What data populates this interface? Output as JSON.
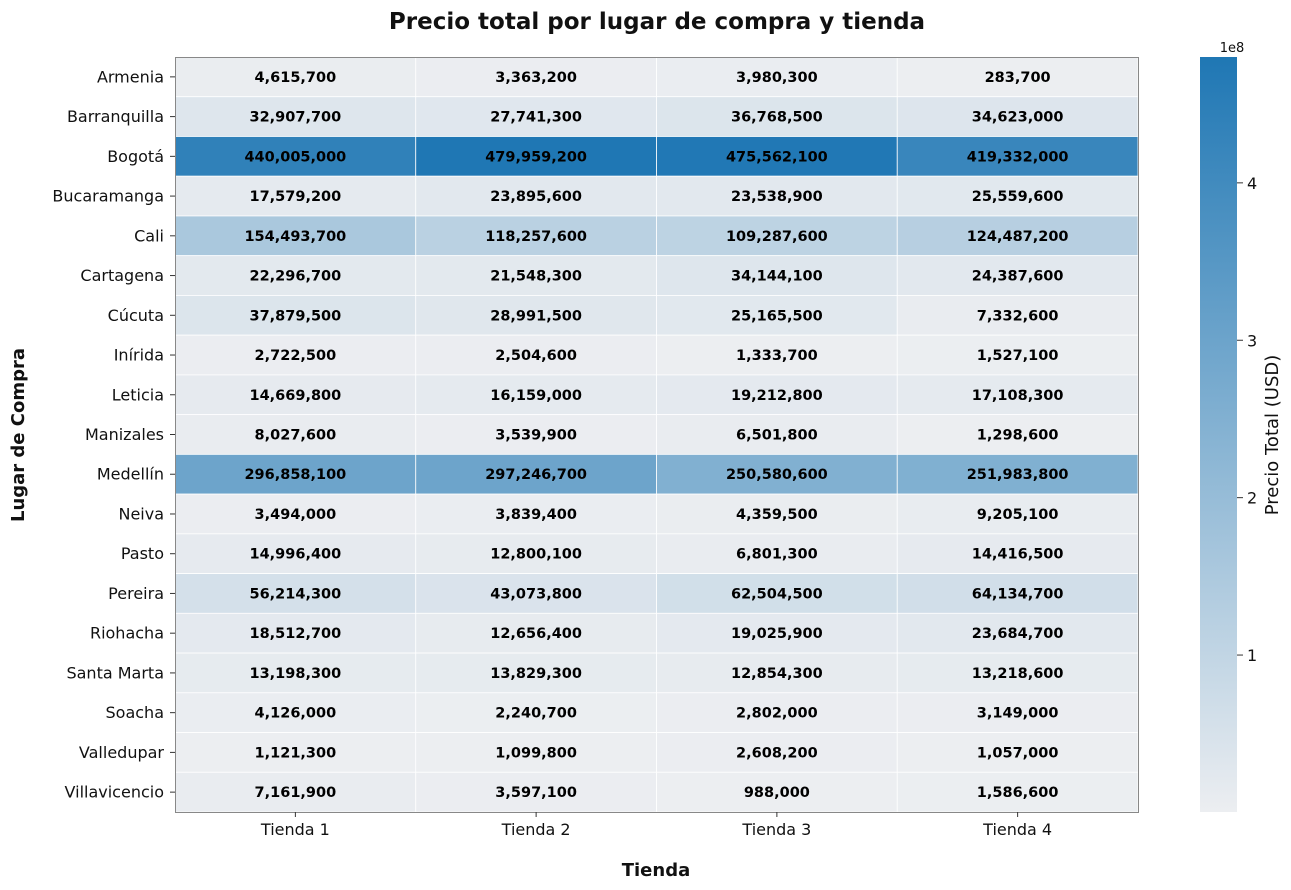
{
  "chart_data": {
    "type": "heatmap",
    "title": "Precio total por lugar de compra y tienda",
    "xlabel": "Tienda",
    "ylabel": "Lugar de Compra",
    "x_categories": [
      "Tienda 1",
      "Tienda 2",
      "Tienda 3",
      "Tienda 4"
    ],
    "y_categories": [
      "Armenia",
      "Barranquilla",
      "Bogotá",
      "Bucaramanga",
      "Cali",
      "Cartagena",
      "Cúcuta",
      "Inírida",
      "Leticia",
      "Manizales",
      "Medellín",
      "Neiva",
      "Pasto",
      "Pereira",
      "Riohacha",
      "Santa Marta",
      "Soacha",
      "Valledupar",
      "Villavicencio"
    ],
    "values": [
      [
        4615700,
        3363200,
        3980300,
        283700
      ],
      [
        32907700,
        27741300,
        36768500,
        34623000
      ],
      [
        440005000,
        479959200,
        475562100,
        419332000
      ],
      [
        17579200,
        23895600,
        23538900,
        25559600
      ],
      [
        154493700,
        118257600,
        109287600,
        124487200
      ],
      [
        22296700,
        21548300,
        34144100,
        24387600
      ],
      [
        37879500,
        28991500,
        25165500,
        7332600
      ],
      [
        2722500,
        2504600,
        1333700,
        1527100
      ],
      [
        14669800,
        16159000,
        19212800,
        17108300
      ],
      [
        8027600,
        3539900,
        6501800,
        1298600
      ],
      [
        296858100,
        297246700,
        250580600,
        251983800
      ],
      [
        3494000,
        3839400,
        4359500,
        9205100
      ],
      [
        14996400,
        12800100,
        6801300,
        14416500
      ],
      [
        56214300,
        43073800,
        62504500,
        64134700
      ],
      [
        18512700,
        12656400,
        19025900,
        23684700
      ],
      [
        13198300,
        13829300,
        12854300,
        13218600
      ],
      [
        4126000,
        2240700,
        2802000,
        3149000
      ],
      [
        1121300,
        1099800,
        2608200,
        1057000
      ],
      [
        7161900,
        3597100,
        988000,
        1586600
      ]
    ],
    "value_format": "thousands-comma",
    "colorbar": {
      "label": "Precio Total (USD)",
      "exponent_label": "1e8",
      "ticks": [
        1,
        2,
        3,
        4
      ],
      "tick_scale": 100000000,
      "vmin": 283700,
      "vmax": 479959200,
      "color_low": "#eceef1",
      "color_high": "#1f77b4"
    },
    "grid": false,
    "cell_border_color": "#ffffff",
    "frame_color": "#888888"
  }
}
